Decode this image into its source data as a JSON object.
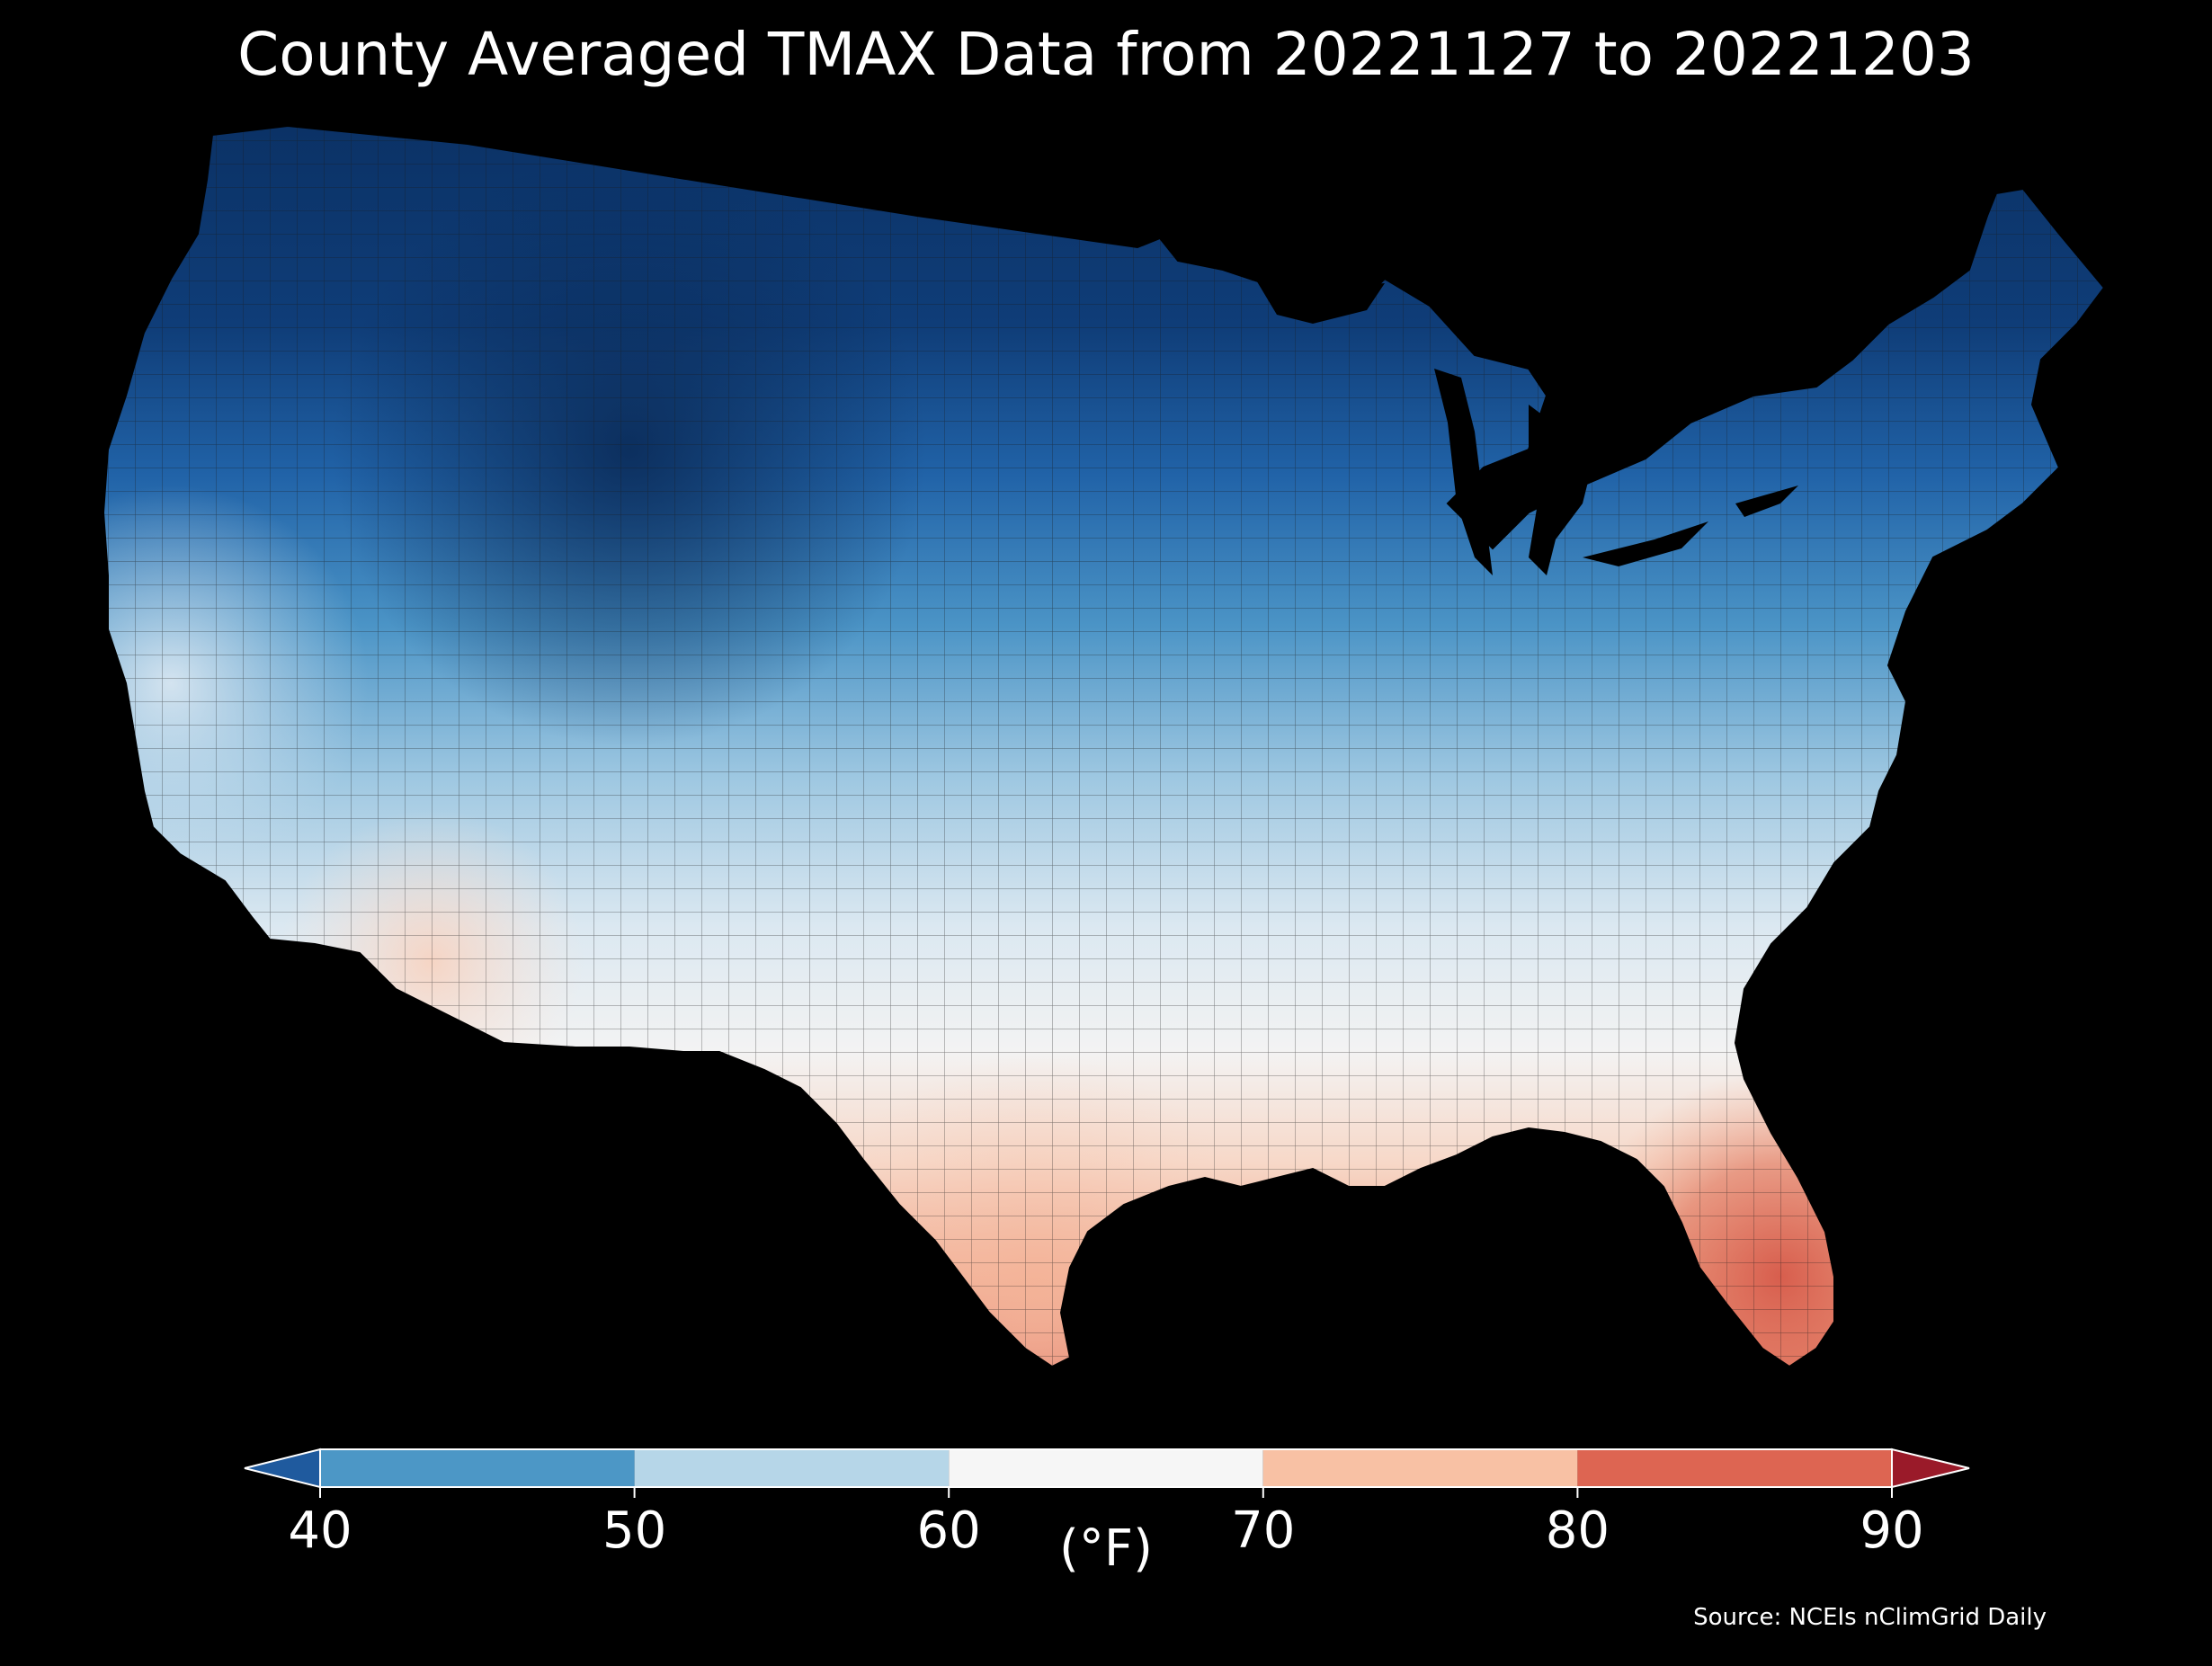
{
  "title": "County Averaged TMAX Data from 20221127 to 20221203",
  "colorbar": {
    "unit_label": "(°F)",
    "ticks": [
      "40",
      "50",
      "60",
      "70",
      "80",
      "90"
    ],
    "bins": [
      {
        "range": [
          40,
          50
        ],
        "color": "#4c97c6"
      },
      {
        "range": [
          50,
          60
        ],
        "color": "#b6d6e8"
      },
      {
        "range": [
          60,
          70
        ],
        "color": "#f6f6f6"
      },
      {
        "range": [
          70,
          80
        ],
        "color": "#f8c1a4"
      },
      {
        "range": [
          80,
          90
        ],
        "color": "#dd6552"
      }
    ],
    "under_color": "#1f5a9e",
    "over_color": "#9a1a29"
  },
  "source": "Source: NCEIs nClimGrid Daily",
  "map": {
    "region": "Contiguous United States, county level",
    "variable": "TMAX",
    "units": "°F",
    "background": "#000000",
    "border_color": "#1a1a1a"
  }
}
